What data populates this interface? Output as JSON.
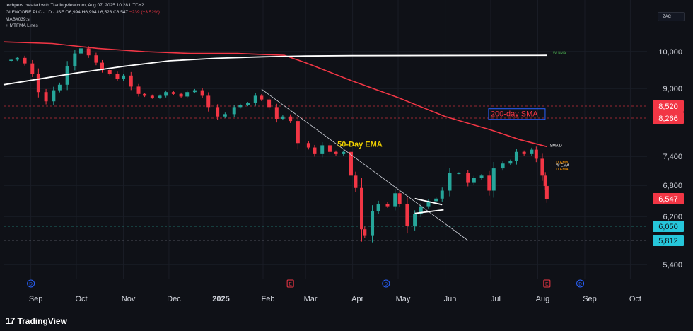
{
  "header": {
    "attribution": "techpers created with TradingView.com, Aug 07, 2025 10:28 UTC+2",
    "symbol_line": "GLENCORE PLC · 1D · JSE",
    "ohlc": "O6,994 H6,994 L6,523 C6,547",
    "change": "−239 (−3.52%)",
    "indicator1": "MAB#039;s",
    "indicator2": "+ MTFMA Lines"
  },
  "currency": "ZAC",
  "logo": {
    "mark": "17",
    "name": "TradingView"
  },
  "chart_data": {
    "type": "candlestick",
    "ylim": [
      5200,
      10500
    ],
    "y_ticks": [
      10000,
      9000,
      7400,
      6800,
      6200,
      5400
    ],
    "x_tick_labels": [
      "Sep",
      "Oct",
      "Nov",
      "Dec",
      "2025",
      "Feb",
      "Mar",
      "Apr",
      "May",
      "Jun",
      "Jul",
      "Aug",
      "Sep",
      "Oct"
    ],
    "x_tick_positions": [
      "2024-09-01",
      "2024-10-01",
      "2024-11-01",
      "2024-12-01",
      "2025-01-01",
      "2025-02-01",
      "2025-03-01",
      "2025-04-01",
      "2025-05-01",
      "2025-06-01",
      "2025-07-01",
      "2025-08-01",
      "2025-09-01",
      "2025-10-01"
    ],
    "close_series": [
      [
        "2024-08-14",
        9750
      ],
      [
        "2024-08-19",
        9780
      ],
      [
        "2024-08-23",
        9830
      ],
      [
        "2024-08-28",
        9680
      ],
      [
        "2024-09-02",
        9400
      ],
      [
        "2024-09-06",
        8900
      ],
      [
        "2024-09-11",
        8650
      ],
      [
        "2024-09-16",
        8950
      ],
      [
        "2024-09-20",
        9100
      ],
      [
        "2024-09-25",
        9600
      ],
      [
        "2024-09-30",
        9950
      ],
      [
        "2024-10-04",
        10100
      ],
      [
        "2024-10-09",
        9900
      ],
      [
        "2024-10-14",
        9700
      ],
      [
        "2024-10-18",
        9500
      ],
      [
        "2024-10-23",
        9400
      ],
      [
        "2024-10-28",
        9250
      ],
      [
        "2024-11-01",
        9350
      ],
      [
        "2024-11-06",
        9050
      ],
      [
        "2024-11-11",
        8850
      ],
      [
        "2024-11-15",
        8800
      ],
      [
        "2024-11-20",
        8750
      ],
      [
        "2024-11-25",
        8800
      ],
      [
        "2024-11-29",
        8900
      ],
      [
        "2024-12-04",
        8850
      ],
      [
        "2024-12-09",
        8780
      ],
      [
        "2024-12-13",
        8900
      ],
      [
        "2024-12-18",
        8950
      ],
      [
        "2024-12-23",
        8800
      ],
      [
        "2024-12-27",
        8500
      ],
      [
        "2025-01-02",
        8300
      ],
      [
        "2025-01-07",
        8350
      ],
      [
        "2025-01-13",
        8500
      ],
      [
        "2025-01-17",
        8550
      ],
      [
        "2025-01-22",
        8600
      ],
      [
        "2025-01-27",
        8800
      ],
      [
        "2025-01-31",
        8700
      ],
      [
        "2025-02-05",
        8500
      ],
      [
        "2025-02-10",
        8250
      ],
      [
        "2025-02-14",
        8300
      ],
      [
        "2025-02-19",
        8200
      ],
      [
        "2025-02-24",
        7700
      ],
      [
        "2025-03-03",
        7600
      ],
      [
        "2025-03-07",
        7450
      ],
      [
        "2025-03-12",
        7650
      ],
      [
        "2025-03-17",
        7500
      ],
      [
        "2025-03-21",
        7450
      ],
      [
        "2025-03-26",
        7500
      ],
      [
        "2025-03-31",
        7000
      ],
      [
        "2025-04-03",
        6750
      ],
      [
        "2025-04-07",
        6000
      ],
      [
        "2025-04-09",
        5900
      ],
      [
        "2025-04-14",
        6300
      ],
      [
        "2025-04-18",
        6450
      ],
      [
        "2025-04-24",
        6400
      ],
      [
        "2025-04-29",
        6650
      ],
      [
        "2025-05-02",
        6450
      ],
      [
        "2025-05-07",
        6050
      ],
      [
        "2025-05-12",
        6250
      ],
      [
        "2025-05-16",
        6400
      ],
      [
        "2025-05-21",
        6500
      ],
      [
        "2025-05-26",
        6550
      ],
      [
        "2025-05-30",
        6700
      ],
      [
        "2025-06-04",
        7050
      ],
      [
        "2025-06-10",
        7050
      ],
      [
        "2025-06-16",
        6850
      ],
      [
        "2025-06-20",
        6950
      ],
      [
        "2025-06-25",
        7000
      ],
      [
        "2025-06-30",
        6700
      ],
      [
        "2025-07-03",
        7150
      ],
      [
        "2025-07-09",
        7250
      ],
      [
        "2025-07-14",
        7300
      ],
      [
        "2025-07-18",
        7500
      ],
      [
        "2025-07-23",
        7450
      ],
      [
        "2025-07-28",
        7550
      ],
      [
        "2025-07-31",
        7350
      ],
      [
        "2025-08-04",
        7000
      ],
      [
        "2025-08-06",
        6786
      ],
      [
        "2025-08-07",
        6547
      ]
    ],
    "ma_200_day_sma": [
      [
        "2024-08-14",
        10300
      ],
      [
        "2024-09-15",
        10250
      ],
      [
        "2024-10-15",
        10100
      ],
      [
        "2024-11-15",
        10000
      ],
      [
        "2024-12-15",
        9950
      ],
      [
        "2025-01-15",
        9950
      ],
      [
        "2025-02-15",
        9900
      ],
      [
        "2025-03-01",
        9700
      ],
      [
        "2025-04-01",
        9200
      ],
      [
        "2025-05-01",
        8750
      ],
      [
        "2025-06-01",
        8300
      ],
      [
        "2025-07-01",
        8000
      ],
      [
        "2025-07-20",
        7780
      ],
      [
        "2025-08-07",
        7620
      ]
    ],
    "weekly_sma": [
      [
        "2024-08-14",
        9100
      ],
      [
        "2024-10-01",
        9420
      ],
      [
        "2024-11-01",
        9600
      ],
      [
        "2024-12-01",
        9750
      ],
      [
        "2025-01-01",
        9820
      ],
      [
        "2025-02-01",
        9860
      ],
      [
        "2025-03-01",
        9880
      ],
      [
        "2025-04-01",
        9890
      ],
      [
        "2025-08-07",
        9900
      ]
    ],
    "trendline": {
      "from": [
        "2025-01-31",
        8980
      ],
      "to": [
        "2025-06-16",
        5812
      ]
    },
    "pattern_lines": [
      {
        "from": [
          "2025-05-12",
          6550
        ],
        "to": [
          "2025-05-30",
          6430
        ]
      },
      {
        "from": [
          "2025-05-12",
          6260
        ],
        "to": [
          "2025-05-31",
          6330
        ]
      }
    ],
    "levels": [
      {
        "value": 8520,
        "label": "8,520",
        "style": "dashed",
        "color": "#f23645"
      },
      {
        "value": 8266,
        "label": "8,266",
        "style": "dashed",
        "color": "#f23645"
      },
      {
        "value": 6050,
        "label": "6,050",
        "style": "dashed",
        "color": "#26a69a"
      },
      {
        "value": 5812,
        "label": "5,812",
        "style": "dashed",
        "color": "#787b86"
      }
    ],
    "last_price": {
      "value": 6547,
      "label": "6,547"
    },
    "annotations": [
      {
        "text": "200-day SMA",
        "at": [
          "2025-07-01",
          8330
        ],
        "boxed": true,
        "color": "#f23645"
      },
      {
        "text": "50-Day EMA",
        "at": [
          "2025-03-22",
          7650
        ],
        "color": "#f0d000"
      }
    ],
    "line_tags": [
      {
        "text": "W SMA",
        "at": [
          "2025-08-11",
          9930
        ],
        "color": "#4caf50"
      },
      {
        "text": "SMA D",
        "at": [
          "2025-08-09",
          7620
        ],
        "color": "#ffffff"
      },
      {
        "text": "D EMA",
        "at": [
          "2025-08-13",
          7250
        ],
        "color": "#ff9800"
      },
      {
        "text": "W EMA",
        "at": [
          "2025-08-13",
          7190
        ],
        "color": "#ffffff"
      },
      {
        "text": "D EMA",
        "at": [
          "2025-08-13",
          7110
        ],
        "color": "#ff9800"
      }
    ],
    "event_markers": [
      {
        "label": "D",
        "date": "2024-09-01",
        "color": "#2962ff"
      },
      {
        "label": "E",
        "date": "2025-02-19",
        "color": "#f23645"
      },
      {
        "label": "D",
        "date": "2025-04-23",
        "color": "#2962ff"
      },
      {
        "label": "E",
        "date": "2025-08-07",
        "color": "#f23645"
      },
      {
        "label": "D",
        "date": "2025-08-29",
        "color": "#2962ff"
      }
    ],
    "colors": {
      "up": "#26a69a",
      "down": "#f23645",
      "sma200": "#f23645",
      "wsma": "#ffffff",
      "background": "#0f1117"
    }
  }
}
